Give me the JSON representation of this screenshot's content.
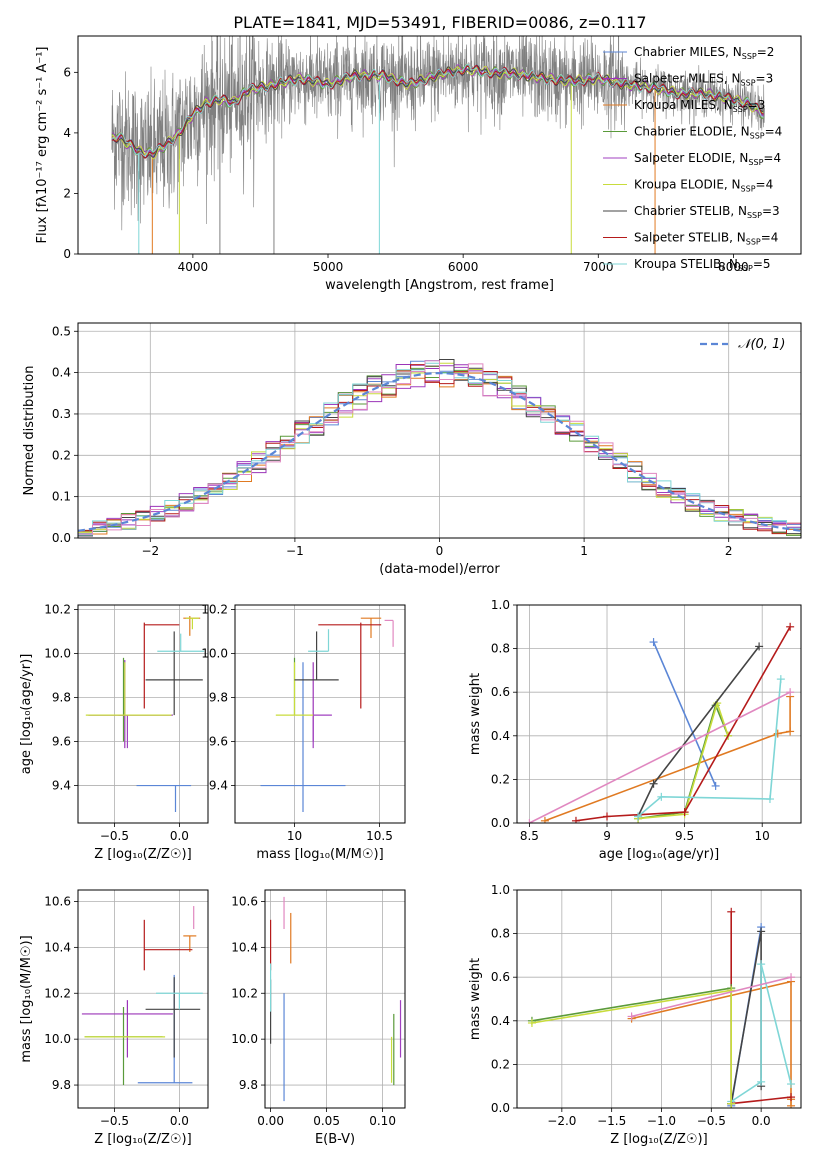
{
  "title": "PLATE=1841, MJD=53491, FIBERID=0086, z=0.117",
  "colors": {
    "Chabrier MILES": "#5b86d6",
    "Salpeter MILES": "#9b34b8",
    "Kroupa MILES": "#e07a22",
    "Chabrier ELODIE": "#5a9a3a",
    "Salpeter ELODIE": "#a040c0",
    "Kroupa ELODIE": "#c8dc3c",
    "Chabrier STELIB": "#444444",
    "Salpeter STELIB": "#b51b1b",
    "Kroupa STELIB": "#7fd6d6",
    "data": "#808080",
    "gaussian": "#5b86d6",
    "extra_pink": "#e088c0"
  },
  "chart_data": [
    {
      "id": "spectrum",
      "type": "line",
      "xlabel": "wavelength [Angstrom, rest frame]",
      "ylabel": "Flux [fλ10⁻¹⁷ erg cm⁻² s⁻¹ A⁻¹]",
      "xlim": [
        3150,
        8500
      ],
      "ylim": [
        0,
        7.2
      ],
      "xticks": [
        4000,
        5000,
        6000,
        7000,
        8000
      ],
      "yticks": [
        0,
        2,
        4,
        6
      ],
      "legend": [
        "Chabrier MILES, N_SSP=2",
        "Salpeter MILES, N_SSP=3",
        "Kroupa MILES, N_SSP=3",
        "Chabrier ELODIE, N_SSP=4",
        "Salpeter ELODIE, N_SSP=4",
        "Kroupa ELODIE, N_SSP=4",
        "Chabrier STELIB, N_SSP=3",
        "Salpeter STELIB, N_SSP=4",
        "Kroupa STELIB, N_SSP=5"
      ],
      "legend_series": [
        "Chabrier MILES",
        "Salpeter MILES",
        "Kroupa MILES",
        "Chabrier ELODIE",
        "Salpeter ELODIE",
        "Kroupa ELODIE",
        "Chabrier STELIB",
        "Salpeter STELIB",
        "Kroupa STELIB"
      ],
      "legend_position": "right",
      "model_continuum": {
        "x": [
          3400,
          3450,
          3500,
          3600,
          3700,
          3800,
          3900,
          4000,
          4100,
          4200,
          4300,
          4400,
          4600,
          4800,
          5000,
          5200,
          5400,
          5600,
          5800,
          6000,
          6200,
          6400,
          6600,
          6800,
          7000,
          7200,
          7400,
          7600,
          7800,
          8000,
          8100,
          8200,
          8230
        ],
        "y": [
          3.8,
          3.9,
          3.7,
          3.4,
          3.3,
          3.6,
          4.0,
          4.6,
          5.0,
          5.1,
          5.0,
          5.4,
          5.6,
          5.8,
          5.6,
          5.9,
          5.9,
          5.6,
          5.9,
          6.1,
          6.0,
          5.95,
          5.8,
          5.7,
          5.8,
          5.6,
          5.5,
          5.3,
          5.3,
          5.1,
          5.0,
          4.7,
          4.6
        ]
      },
      "noise_amplitude": 1.2,
      "spikes": [
        {
          "x": 3600,
          "y": 0.0
        },
        {
          "x": 3700,
          "y": 0.0
        },
        {
          "x": 3900,
          "y": 0.0
        },
        {
          "x": 4200,
          "y": 0.0
        },
        {
          "x": 4600,
          "y": 0.0
        },
        {
          "x": 5380,
          "y": 0.0
        },
        {
          "x": 6800,
          "y": 0.0
        },
        {
          "x": 7150,
          "y": 7.2
        },
        {
          "x": 7420,
          "y": 0.0
        }
      ]
    },
    {
      "id": "residuals",
      "type": "histogram",
      "xlabel": "(data-model)/error",
      "ylabel": "Normed distribution",
      "xlim": [
        -2.5,
        2.5
      ],
      "ylim": [
        0,
        0.52
      ],
      "xticks": [
        -2,
        -1,
        0,
        1,
        2
      ],
      "yticks": [
        0.0,
        0.1,
        0.2,
        0.3,
        0.4,
        0.5
      ],
      "legend": [
        "𝒩(0, 1)"
      ],
      "legend_position": "top-right",
      "bin_width": 0.1,
      "bin_start": -2.5,
      "bins_count": 50
    },
    {
      "id": "age_vs_Z",
      "type": "errorbar",
      "xlabel": "Z [log₁₀(Z/Z☉)]",
      "ylabel": "age  [log₁₀(age/yr)]",
      "xlim": [
        -0.78,
        0.22
      ],
      "ylim": [
        9.23,
        10.22
      ],
      "xticks": [
        -0.5,
        0.0
      ],
      "xticklabels": [
        "−0.5",
        "0.0"
      ],
      "yticks": [
        9.4,
        9.6,
        9.8,
        10.0,
        10.2
      ],
      "points": [
        {
          "s": "Chabrier MILES",
          "x": -0.03,
          "y": 9.4,
          "xerr": [
            0.3,
            0.12
          ],
          "yerr": [
            0.12,
            0.0
          ]
        },
        {
          "s": "Salpeter MILES",
          "x": -0.42,
          "y": 9.72,
          "xerr": [
            0.05,
            0.0
          ],
          "yerr": [
            0.15,
            0.25
          ]
        },
        {
          "s": "Kroupa MILES",
          "x": 0.08,
          "y": 10.16,
          "xerr": [
            0.05,
            0.08
          ],
          "yerr": [
            0.08,
            0.01
          ]
        },
        {
          "s": "Chabrier ELODIE",
          "x": -0.43,
          "y": 9.72,
          "xerr": [
            0.0,
            0.0
          ],
          "yerr": [
            0.12,
            0.26
          ]
        },
        {
          "s": "Salpeter ELODIE",
          "x": -0.4,
          "y": 9.72,
          "xerr": [
            0.3,
            0.35
          ],
          "yerr": [
            0.15,
            0.0
          ]
        },
        {
          "s": "Kroupa ELODIE",
          "x": -0.42,
          "y": 9.72,
          "xerr": [
            0.3,
            0.36
          ],
          "yerr": [
            0.0,
            0.24
          ]
        },
        {
          "s": "Chabrier STELIB",
          "x": -0.04,
          "y": 9.88,
          "xerr": [
            0.22,
            0.22
          ],
          "yerr": [
            0.16,
            0.22
          ]
        },
        {
          "s": "Salpeter STELIB",
          "x": -0.27,
          "y": 10.13,
          "xerr": [
            0.0,
            0.27
          ],
          "yerr": [
            0.38,
            0.01
          ]
        },
        {
          "s": "Kroupa STELIB",
          "x": 0.01,
          "y": 10.01,
          "xerr": [
            0.18,
            0.18
          ],
          "yerr": [
            0.0,
            0.08
          ]
        },
        {
          "s": "Kroupa ELODIE",
          "x": 0.1,
          "y": 10.16,
          "xerr": [
            0.05,
            0.05
          ],
          "yerr": [
            0.05,
            0.0
          ]
        }
      ]
    },
    {
      "id": "age_vs_mass",
      "type": "errorbar",
      "xlabel": "mass [log₁₀(M/M☉)]",
      "ylabel": "",
      "xlim": [
        9.65,
        10.65
      ],
      "ylim": [
        9.23,
        10.22
      ],
      "xticks": [
        10.0,
        10.5
      ],
      "yticks": [
        9.4,
        9.6,
        9.8,
        10.0,
        10.2
      ],
      "points": [
        {
          "s": "Chabrier MILES",
          "x": 10.05,
          "y": 9.4,
          "xerr": [
            0.25,
            0.25
          ],
          "yerr": [
            0.12,
            0.56
          ]
        },
        {
          "s": "Salpeter MILES",
          "x": 10.11,
          "y": 9.72,
          "xerr": [
            0.0,
            0.0
          ],
          "yerr": [
            0.12,
            0.24
          ]
        },
        {
          "s": "Kroupa MILES",
          "x": 10.45,
          "y": 10.16,
          "xerr": [
            0.06,
            0.06
          ],
          "yerr": [
            0.09,
            0.0
          ]
        },
        {
          "s": "Chabrier ELODIE",
          "x": 10.0,
          "y": 9.72,
          "xerr": [
            0.0,
            0.0
          ],
          "yerr": [
            0.0,
            0.26
          ]
        },
        {
          "s": "Salpeter ELODIE",
          "x": 10.11,
          "y": 9.72,
          "xerr": [
            0.0,
            0.11
          ],
          "yerr": [
            0.15,
            0.0
          ]
        },
        {
          "s": "Kroupa ELODIE",
          "x": 10.0,
          "y": 9.72,
          "xerr": [
            0.11,
            0.11
          ],
          "yerr": [
            0.0,
            0.24
          ]
        },
        {
          "s": "Chabrier STELIB",
          "x": 10.13,
          "y": 9.88,
          "xerr": [
            0.13,
            0.13
          ],
          "yerr": [
            0.0,
            0.22
          ]
        },
        {
          "s": "Salpeter STELIB",
          "x": 10.39,
          "y": 10.13,
          "xerr": [
            0.25,
            0.12
          ],
          "yerr": [
            0.38,
            0.01
          ]
        },
        {
          "s": "Kroupa STELIB",
          "x": 10.2,
          "y": 10.01,
          "xerr": [
            0.12,
            0.0
          ],
          "yerr": [
            0.0,
            0.1
          ]
        },
        {
          "s": "extra",
          "x": 10.58,
          "y": 10.15,
          "xerr": [
            0.05,
            0.0
          ],
          "yerr": [
            0.12,
            0.0
          ]
        }
      ]
    },
    {
      "id": "mass_weight_vs_age",
      "type": "line",
      "xlabel": "age  [log₁₀(age/yr)]",
      "ylabel": "mass weight",
      "xlim": [
        8.42,
        10.25
      ],
      "ylim": [
        0,
        1.0
      ],
      "xticks": [
        8.5,
        9.0,
        9.5,
        10.0
      ],
      "yticks": [
        0.0,
        0.2,
        0.4,
        0.6,
        0.8,
        1.0
      ],
      "series": [
        {
          "s": "Chabrier MILES",
          "x": [
            9.3,
            9.7
          ],
          "y": [
            0.83,
            0.17
          ]
        },
        {
          "s": "Kroupa MILES",
          "x": [
            8.6,
            10.1,
            10.18,
            10.18
          ],
          "y": [
            0.01,
            0.41,
            0.42,
            0.58
          ]
        },
        {
          "s": "Chabrier ELODIE",
          "x": [
            9.2,
            9.5,
            9.7,
            9.78
          ],
          "y": [
            0.02,
            0.05,
            0.54,
            0.4
          ]
        },
        {
          "s": "Kroupa ELODIE",
          "x": [
            9.2,
            9.5,
            9.71,
            9.78
          ],
          "y": [
            0.02,
            0.04,
            0.55,
            0.4
          ]
        },
        {
          "s": "Chabrier STELIB",
          "x": [
            9.2,
            9.3,
            9.98
          ],
          "y": [
            0.03,
            0.18,
            0.81
          ]
        },
        {
          "s": "Salpeter STELIB",
          "x": [
            8.8,
            9.0,
            9.5,
            10.18
          ],
          "y": [
            0.01,
            0.03,
            0.05,
            0.9
          ]
        },
        {
          "s": "Kroupa STELIB",
          "x": [
            9.2,
            9.35,
            10.05,
            10.12
          ],
          "y": [
            0.03,
            0.12,
            0.11,
            0.66
          ]
        },
        {
          "s": "extra",
          "x": [
            8.5,
            10.18
          ],
          "y": [
            0.0,
            0.6
          ]
        }
      ]
    },
    {
      "id": "mass_vs_Z",
      "type": "errorbar",
      "xlabel": "Z [log₁₀(Z/Z☉)]",
      "ylabel": "mass [log₁₀(M/M☉)]",
      "xlim": [
        -0.78,
        0.22
      ],
      "ylim": [
        9.7,
        10.65
      ],
      "xticks": [
        -0.5,
        0.0
      ],
      "xticklabels": [
        "−0.5",
        "0.0"
      ],
      "yticks": [
        9.8,
        10.0,
        10.2,
        10.4,
        10.6
      ],
      "points": [
        {
          "s": "Chabrier MILES",
          "x": -0.04,
          "y": 9.81,
          "xerr": [
            0.28,
            0.14
          ],
          "yerr": [
            0.0,
            0.47
          ]
        },
        {
          "s": "Salpeter MILES",
          "x": -0.4,
          "y": 10.11,
          "xerr": [
            0.35,
            0.35
          ],
          "yerr": [
            0.19,
            0.06
          ]
        },
        {
          "s": "Kroupa MILES",
          "x": 0.08,
          "y": 10.45,
          "xerr": [
            0.05,
            0.05
          ],
          "yerr": [
            0.07,
            0.0
          ]
        },
        {
          "s": "Chabrier ELODIE",
          "x": -0.43,
          "y": 10.01,
          "xerr": [
            0.3,
            0.3
          ],
          "yerr": [
            0.21,
            0.13
          ]
        },
        {
          "s": "Salpeter ELODIE",
          "x": -0.41,
          "y": 10.01,
          "xerr": [
            0.0,
            0.0
          ],
          "yerr": [
            0.0,
            0.0
          ]
        },
        {
          "s": "Kroupa ELODIE",
          "x": -0.42,
          "y": 10.01,
          "xerr": [
            0.31,
            0.31
          ],
          "yerr": [
            0.0,
            0.0
          ]
        },
        {
          "s": "Chabrier STELIB",
          "x": -0.04,
          "y": 10.13,
          "xerr": [
            0.22,
            0.2
          ],
          "yerr": [
            0.21,
            0.14
          ]
        },
        {
          "s": "Salpeter STELIB",
          "x": -0.27,
          "y": 10.39,
          "xerr": [
            0.0,
            0.37
          ],
          "yerr": [
            0.09,
            0.13
          ]
        },
        {
          "s": "Kroupa STELIB",
          "x": 0.0,
          "y": 10.2,
          "xerr": [
            0.18,
            0.18
          ],
          "yerr": [
            0.07,
            0.0
          ]
        },
        {
          "s": "extra",
          "x": 0.11,
          "y": 10.58,
          "xerr": [
            0.0,
            0.0
          ],
          "yerr": [
            0.1,
            0.0
          ]
        }
      ]
    },
    {
      "id": "mass_vs_EBV",
      "type": "errorbar",
      "xlabel": "E(B-V)",
      "ylabel": "",
      "xlim": [
        -0.005,
        0.12
      ],
      "ylim": [
        9.7,
        10.65
      ],
      "xticks": [
        0.0,
        0.05,
        0.1
      ],
      "xticklabels": [
        "0.00",
        "0.05",
        "0.10"
      ],
      "yticks": [
        9.8,
        10.0,
        10.2,
        10.4,
        10.6
      ],
      "points": [
        {
          "s": "Chabrier MILES",
          "x": 0.012,
          "y": 10.2,
          "xerr": [
            0,
            0
          ],
          "yerr": [
            0.47,
            0.0
          ]
        },
        {
          "s": "Kroupa MILES",
          "x": 0.018,
          "y": 10.45,
          "xerr": [
            0,
            0
          ],
          "yerr": [
            0.12,
            0.1
          ]
        },
        {
          "s": "Salpeter STELIB",
          "x": 0.0,
          "y": 10.39,
          "xerr": [
            0,
            0
          ],
          "yerr": [
            0.09,
            0.13
          ]
        },
        {
          "s": "Chabrier STELIB",
          "x": 0.0,
          "y": 10.13,
          "xerr": [
            0,
            0
          ],
          "yerr": [
            0.15,
            0.13
          ]
        },
        {
          "s": "Kroupa STELIB",
          "x": 0.0,
          "y": 10.2,
          "xerr": [
            0,
            0
          ],
          "yerr": [
            0.08,
            0.13
          ]
        },
        {
          "s": "extra",
          "x": 0.012,
          "y": 10.58,
          "xerr": [
            0,
            0
          ],
          "yerr": [
            0.1,
            0.04
          ]
        },
        {
          "s": "Chabrier ELODIE",
          "x": 0.11,
          "y": 10.01,
          "xerr": [
            0,
            0
          ],
          "yerr": [
            0.21,
            0.1
          ]
        },
        {
          "s": "Kroupa ELODIE",
          "x": 0.108,
          "y": 10.01,
          "xerr": [
            0,
            0
          ],
          "yerr": [
            0.2,
            0.0
          ]
        },
        {
          "s": "Salpeter ELODIE",
          "x": 0.116,
          "y": 10.05,
          "xerr": [
            0,
            0
          ],
          "yerr": [
            0.13,
            0.12
          ]
        }
      ]
    },
    {
      "id": "mass_weight_vs_Z",
      "type": "line",
      "xlabel": "Z [log₁₀(Z/Z☉)]",
      "ylabel": "mass weight",
      "xlim": [
        -2.45,
        0.4
      ],
      "ylim": [
        0,
        1.0
      ],
      "xticks": [
        -2.0,
        -1.5,
        -1.0,
        -0.5,
        0.0
      ],
      "xticklabels": [
        "−2.0",
        "−1.5",
        "−1.0",
        "−0.5",
        "0.0"
      ],
      "yticks": [
        0.0,
        0.2,
        0.4,
        0.6,
        0.8,
        1.0
      ],
      "series": [
        {
          "s": "Chabrier MILES",
          "x": [
            -0.3,
            0.0
          ],
          "y": [
            0.01,
            0.83
          ]
        },
        {
          "s": "Kroupa MILES",
          "x": [
            -1.3,
            0.3,
            0.3,
            0.3
          ],
          "y": [
            0.41,
            0.58,
            0.01,
            0.04
          ]
        },
        {
          "s": "Salpeter STELIB",
          "x": [
            -0.3,
            -0.3,
            0.3
          ],
          "y": [
            0.9,
            0.02,
            0.05
          ]
        },
        {
          "s": "Chabrier STELIB",
          "x": [
            -0.3,
            0.0,
            0.0
          ],
          "y": [
            0.02,
            0.81,
            0.1
          ]
        },
        {
          "s": "Kroupa STELIB",
          "x": [
            -0.3,
            0.0,
            0.0,
            0.3
          ],
          "y": [
            0.03,
            0.12,
            0.66,
            0.11
          ]
        },
        {
          "s": "Chabrier ELODIE",
          "x": [
            -2.3,
            -0.3,
            -0.3
          ],
          "y": [
            0.4,
            0.55,
            0.02
          ]
        },
        {
          "s": "Kroupa ELODIE",
          "x": [
            -2.3,
            -0.3,
            -0.3
          ],
          "y": [
            0.39,
            0.54,
            0.02
          ]
        },
        {
          "s": "extra",
          "x": [
            -1.3,
            0.3
          ],
          "y": [
            0.42,
            0.6
          ]
        }
      ]
    }
  ]
}
